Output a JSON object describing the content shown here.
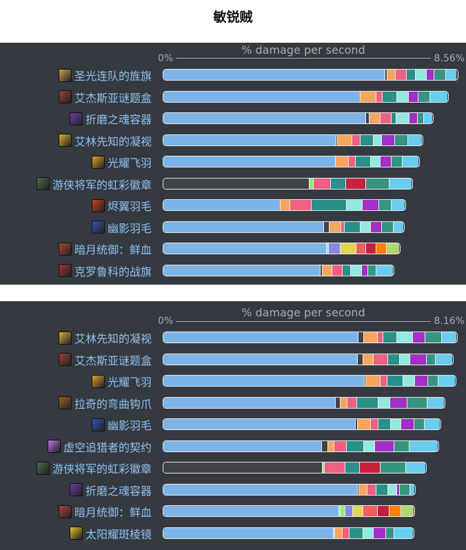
{
  "page_title": "敏锐贼",
  "colors": {
    "blue": "#7db4e8",
    "dark": "#424347",
    "orange": "#f5a55e",
    "pink": "#f06082",
    "teal": "#2a908b",
    "mint": "#93e9df",
    "purple": "#a32fc6",
    "green": "#359580",
    "sky": "#69cdef",
    "lgreen": "#93ec72",
    "red": "#c6213c",
    "indigo": "#8888e6",
    "yellow": "#e1d458",
    "salmon": "#f15e5e",
    "dorange": "#ff800a",
    "lime": "#b0d673"
  },
  "chart_data": [
    {
      "type": "bar",
      "orientation": "horizontal",
      "stacked": true,
      "xlabel": "% damage per second",
      "xlim": [
        0,
        8.56
      ],
      "tick_min": "0%",
      "tick_max": "8.56%",
      "rows": [
        {
          "label": "圣光连队的旌旗",
          "icon": "banner-icon",
          "icon_color": "#c9a24a",
          "segments": [
            [
              "blue",
              6.47
            ],
            [
              "dark",
              0.06
            ],
            [
              "orange",
              0.24
            ],
            [
              "pink",
              0.32
            ],
            [
              "teal",
              0.26
            ],
            [
              "mint",
              0.32
            ],
            [
              "purple",
              0.22
            ],
            [
              "green",
              0.34
            ],
            [
              "sky",
              0.32
            ]
          ]
        },
        {
          "label": "艾杰斯亚谜题盒",
          "icon": "puzzle-box-icon",
          "icon_color": "#9a3a3a",
          "segments": [
            [
              "blue",
              5.75
            ],
            [
              "orange",
              0.46
            ],
            [
              "pink",
              0.18
            ],
            [
              "teal",
              0.42
            ],
            [
              "mint",
              0.34
            ],
            [
              "purple",
              0.28
            ],
            [
              "green",
              0.34
            ],
            [
              "sky",
              0.5
            ]
          ]
        },
        {
          "label": "折磨之魂容器",
          "icon": "soul-vessel-icon",
          "icon_color": "#6a3aa8",
          "segments": [
            [
              "blue",
              5.91
            ],
            [
              "dark",
              0.1
            ],
            [
              "orange",
              0.32
            ],
            [
              "pink",
              0.32
            ],
            [
              "teal",
              0.14
            ],
            [
              "mint",
              0.38
            ],
            [
              "purple",
              0.24
            ],
            [
              "green",
              0.18
            ],
            [
              "sky",
              0.24
            ]
          ]
        },
        {
          "label": "艾林先知的凝视",
          "icon": "eye-icon",
          "icon_color": "#d8b030",
          "segments": [
            [
              "blue",
              5.05
            ],
            [
              "dark",
              0.04
            ],
            [
              "orange",
              0.42
            ],
            [
              "pink",
              0.24
            ],
            [
              "teal",
              0.38
            ],
            [
              "mint",
              0.24
            ],
            [
              "purple",
              0.38
            ],
            [
              "green",
              0.38
            ],
            [
              "sky",
              0.4
            ]
          ]
        },
        {
          "label": "光耀飞羽",
          "icon": "feather-icon",
          "icon_color": "#e0a020",
          "segments": [
            [
              "blue",
              5.03
            ],
            [
              "orange",
              0.38
            ],
            [
              "pink",
              0.2
            ],
            [
              "teal",
              0.44
            ],
            [
              "mint",
              0.28
            ],
            [
              "purple",
              0.32
            ],
            [
              "green",
              0.32
            ],
            [
              "sky",
              0.46
            ]
          ]
        },
        {
          "label": "游侠将军的虹彩徽章",
          "icon": "insignia-icon",
          "icon_color": "#4a6a4a",
          "segments": [
            [
              "dark",
              4.26
            ],
            [
              "lgreen",
              0.12
            ],
            [
              "pink",
              0.5
            ],
            [
              "teal",
              0.44
            ],
            [
              "red",
              0.58
            ],
            [
              "green",
              0.7
            ],
            [
              "sky",
              0.64
            ]
          ]
        },
        {
          "label": "烬翼羽毛",
          "icon": "ember-feather-icon",
          "icon_color": "#d04020",
          "segments": [
            [
              "blue",
              3.42
            ],
            [
              "orange",
              0.28
            ],
            [
              "pink",
              0.62
            ],
            [
              "teal",
              1.03
            ],
            [
              "mint",
              0.46
            ],
            [
              "purple",
              0.48
            ],
            [
              "green",
              0.36
            ],
            [
              "sky",
              0.38
            ]
          ]
        },
        {
          "label": "幽影羽毛",
          "icon": "shadow-feather-icon",
          "icon_color": "#3050c0",
          "segments": [
            [
              "blue",
              4.68
            ],
            [
              "dark",
              0.16
            ],
            [
              "orange",
              0.34
            ],
            [
              "pink",
              0.1
            ],
            [
              "teal",
              0.46
            ],
            [
              "mint",
              0.3
            ],
            [
              "purple",
              0.34
            ],
            [
              "green",
              0.34
            ],
            [
              "sky",
              0.28
            ]
          ]
        },
        {
          "label": "暗月统御：鲜血",
          "icon": "darkmoon-card-icon",
          "icon_color": "#b04040",
          "segments": [
            [
              "blue",
              4.76
            ],
            [
              "mint",
              0.06
            ],
            [
              "indigo",
              0.34
            ],
            [
              "yellow",
              0.46
            ],
            [
              "salmon",
              0.28
            ],
            [
              "red",
              0.3
            ],
            [
              "dorange",
              0.32
            ],
            [
              "lime",
              0.36
            ]
          ]
        },
        {
          "label": "克罗鲁科的战旗",
          "icon": "war-banner-icon",
          "icon_color": "#a03040",
          "segments": [
            [
              "blue",
              4.58
            ],
            [
              "dark",
              0.06
            ],
            [
              "orange",
              0.28
            ],
            [
              "pink",
              0.3
            ],
            [
              "teal",
              0.24
            ],
            [
              "mint",
              0.32
            ],
            [
              "purple",
              0.18
            ],
            [
              "green",
              0.24
            ],
            [
              "sky",
              0.5
            ]
          ]
        }
      ]
    },
    {
      "type": "bar",
      "orientation": "horizontal",
      "stacked": true,
      "xlabel": "% damage per second",
      "xlim": [
        0,
        8.16
      ],
      "tick_min": "0%",
      "tick_max": "8.16%",
      "rows": [
        {
          "label": "艾林先知的凝视",
          "icon": "eye-icon",
          "icon_color": "#d8b030",
          "segments": [
            [
              "blue",
              5.42
            ],
            [
              "dark",
              0.15
            ],
            [
              "orange",
              0.38
            ],
            [
              "pink",
              0.17
            ],
            [
              "teal",
              0.38
            ],
            [
              "mint",
              0.44
            ],
            [
              "purple",
              0.33
            ],
            [
              "green",
              0.46
            ],
            [
              "sky",
              0.42
            ]
          ]
        },
        {
          "label": "艾杰斯亚谜题盒",
          "icon": "puzzle-box-icon",
          "icon_color": "#9a3a3a",
          "segments": [
            [
              "blue",
              5.4
            ],
            [
              "dark",
              0.15
            ],
            [
              "orange",
              0.29
            ],
            [
              "pink",
              0.4
            ],
            [
              "teal",
              0.34
            ],
            [
              "mint",
              0.27
            ],
            [
              "purple",
              0.46
            ],
            [
              "green",
              0.25
            ],
            [
              "sky",
              0.46
            ]
          ]
        },
        {
          "label": "光耀飞羽",
          "icon": "feather-icon",
          "icon_color": "#e0a020",
          "segments": [
            [
              "blue",
              5.59
            ],
            [
              "dark",
              0.04
            ],
            [
              "orange",
              0.4
            ],
            [
              "pink",
              0.19
            ],
            [
              "teal",
              0.44
            ],
            [
              "mint",
              0.33
            ],
            [
              "purple",
              0.36
            ],
            [
              "green",
              0.29
            ],
            [
              "sky",
              0.46
            ]
          ]
        },
        {
          "label": "拉奇的弯曲钩爪",
          "icon": "claw-icon",
          "icon_color": "#a06020",
          "segments": [
            [
              "blue",
              4.79
            ],
            [
              "dark",
              0.13
            ],
            [
              "orange",
              0.19
            ],
            [
              "pink",
              0.27
            ],
            [
              "teal",
              0.59
            ],
            [
              "mint",
              0.34
            ],
            [
              "purple",
              0.48
            ],
            [
              "green",
              0.54
            ],
            [
              "sky",
              0.46
            ]
          ]
        },
        {
          "label": "幽影羽毛",
          "icon": "shadow-feather-icon",
          "icon_color": "#3050c0",
          "segments": [
            [
              "blue",
              5.34
            ],
            [
              "dark",
              0.06
            ],
            [
              "orange",
              0.36
            ],
            [
              "pink",
              0.21
            ],
            [
              "teal",
              0.36
            ],
            [
              "mint",
              0.27
            ],
            [
              "purple",
              0.38
            ],
            [
              "green",
              0.29
            ],
            [
              "sky",
              0.42
            ]
          ]
        },
        {
          "label": "虚空追猎者的契约",
          "icon": "void-contract-icon",
          "icon_color": "#c070e0",
          "segments": [
            [
              "blue",
              4.4
            ],
            [
              "dark",
              0.17
            ],
            [
              "orange",
              0.19
            ],
            [
              "pink",
              0.34
            ],
            [
              "teal",
              0.48
            ],
            [
              "mint",
              0.31
            ],
            [
              "purple",
              0.52
            ],
            [
              "green",
              0.42
            ],
            [
              "sky",
              0.79
            ]
          ]
        },
        {
          "label": "游侠将军的虹彩徽章",
          "icon": "insignia-icon",
          "icon_color": "#4a6a4a",
          "segments": [
            [
              "dark",
              4.42
            ],
            [
              "lgreen",
              0.06
            ],
            [
              "pink",
              0.57
            ],
            [
              "teal",
              0.4
            ],
            [
              "red",
              0.59
            ],
            [
              "green",
              0.71
            ],
            [
              "sky",
              0.52
            ]
          ]
        },
        {
          "label": "折磨之魂容器",
          "icon": "soul-vessel-icon",
          "icon_color": "#6a3aa8",
          "segments": [
            [
              "blue",
              5.4
            ],
            [
              "dark",
              0.04
            ],
            [
              "orange",
              0.23
            ],
            [
              "pink",
              0.25
            ],
            [
              "teal",
              0.33
            ],
            [
              "mint",
              0.25
            ],
            [
              "purple",
              0.08
            ],
            [
              "green",
              0.27
            ],
            [
              "sky",
              0.13
            ]
          ]
        },
        {
          "label": "暗月统御：鲜血",
          "icon": "darkmoon-card-icon",
          "icon_color": "#b04040",
          "segments": [
            [
              "blue",
              4.88
            ],
            [
              "mint",
              0.04
            ],
            [
              "lgreen",
              0.13
            ],
            [
              "indigo",
              0.21
            ],
            [
              "yellow",
              0.29
            ],
            [
              "salmon",
              0.4
            ],
            [
              "red",
              0.33
            ],
            [
              "dorange",
              0.33
            ],
            [
              "lime",
              0.34
            ]
          ]
        },
        {
          "label": "太阳耀斑棱镜",
          "icon": "prism-icon",
          "icon_color": "#e8c020",
          "segments": [
            [
              "blue",
              4.73
            ],
            [
              "mint",
              0.04
            ],
            [
              "orange",
              0.21
            ],
            [
              "pink",
              0.19
            ],
            [
              "teal",
              0.38
            ],
            [
              "mint",
              0.29
            ],
            [
              "purple",
              0.34
            ],
            [
              "green",
              0.23
            ],
            [
              "sky",
              0.52
            ]
          ]
        }
      ]
    }
  ]
}
